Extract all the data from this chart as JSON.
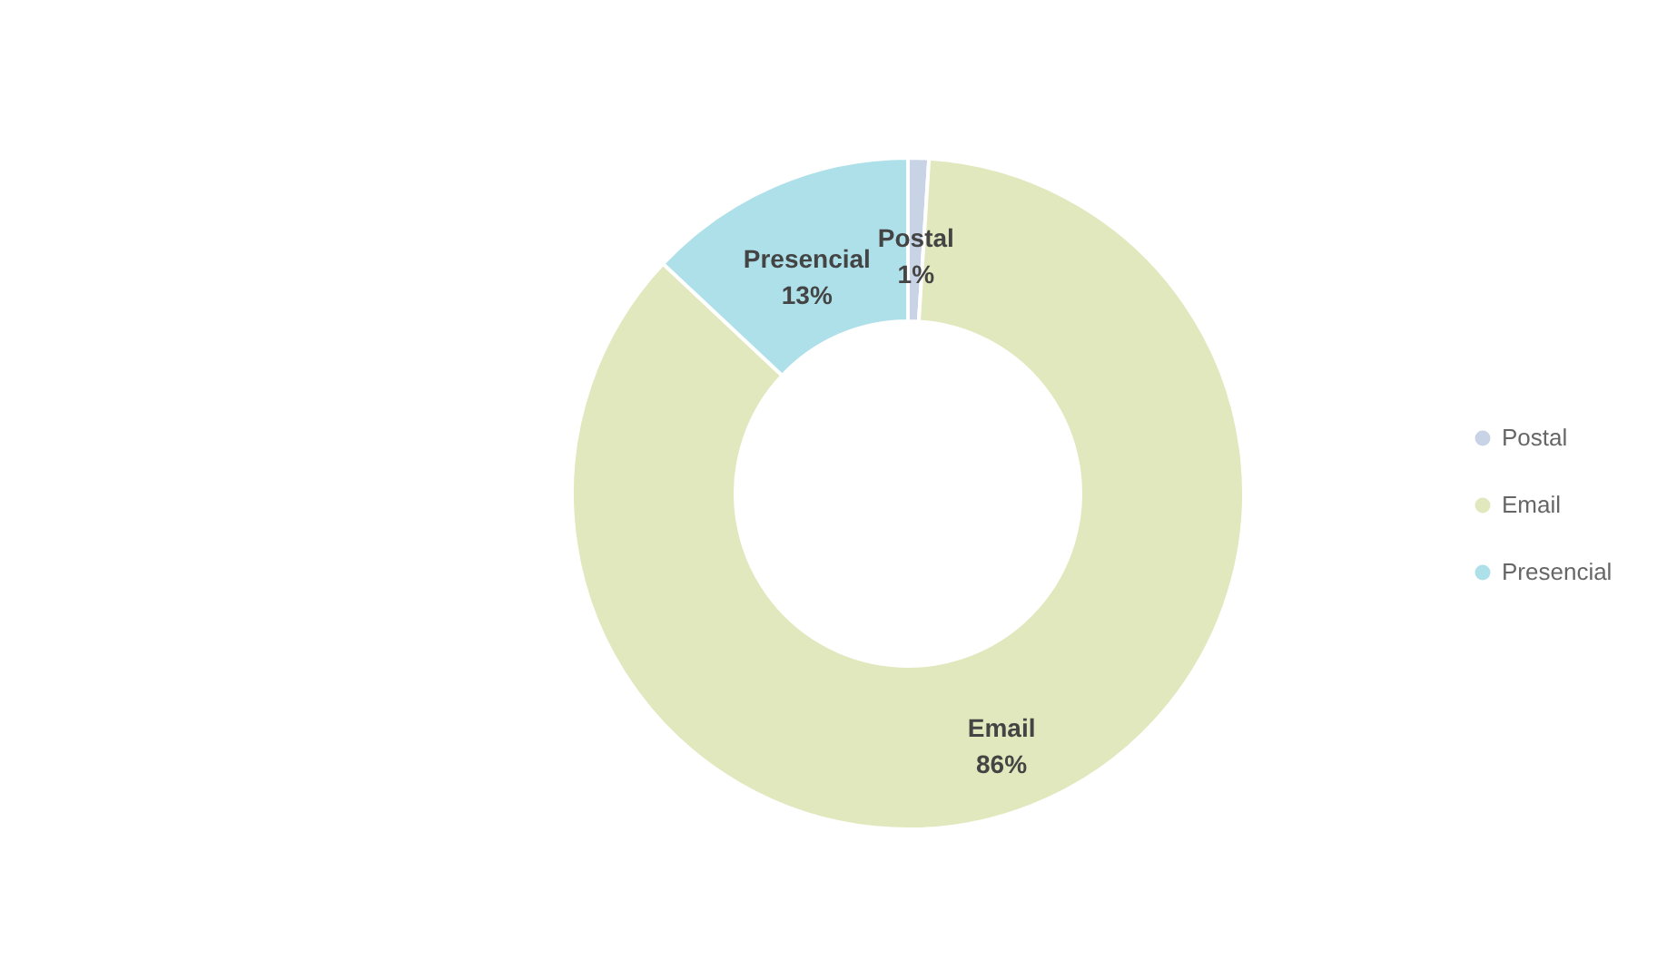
{
  "chart_data": {
    "type": "donut",
    "categories": [
      "Postal",
      "Email",
      "Presencial"
    ],
    "values": [
      1,
      86,
      13
    ],
    "value_labels": [
      "1%",
      "86%",
      "13%"
    ],
    "colors": [
      "#c9d3e6",
      "#e2e8bd",
      "#aee0ea"
    ],
    "legend": "right"
  }
}
